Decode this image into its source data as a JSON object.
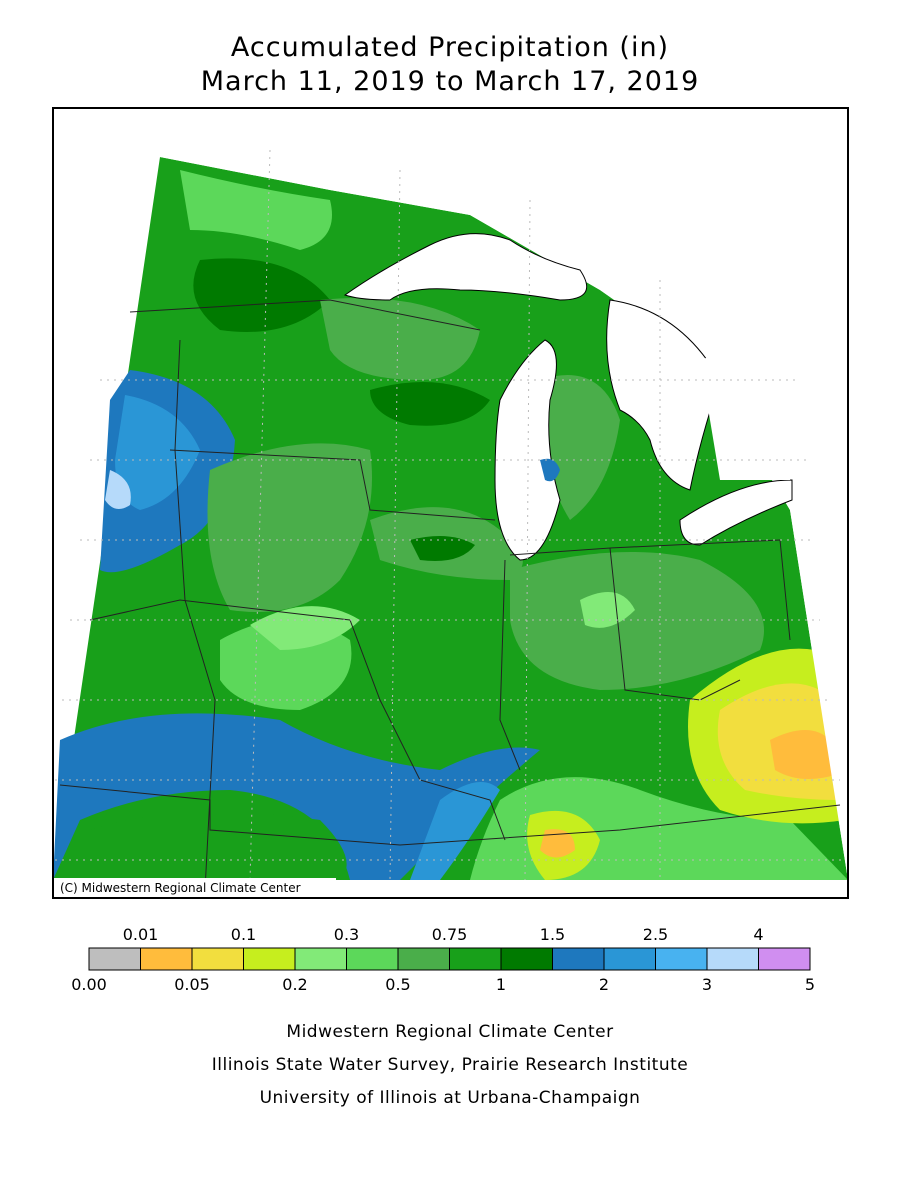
{
  "title": [
    "Accumulated Precipitation (in)",
    "March 11, 2019 to March 17, 2019"
  ],
  "map": {
    "credit": "(C) Midwestern Regional Climate Center"
  },
  "legend": {
    "labels": [
      "0.00",
      "0.01",
      "0.05",
      "0.1",
      "0.2",
      "0.3",
      "0.5",
      "0.75",
      "1",
      "1.5",
      "2",
      "2.5",
      "3",
      "4",
      "5"
    ],
    "colors": [
      "#bebebe",
      "#ffbc3c",
      "#f2de3e",
      "#c6ee1e",
      "#82ea78",
      "#5cd85a",
      "#4aae4a",
      "#18a01a",
      "#007a00",
      "#1e78be",
      "#2a96d6",
      "#48b2f0",
      "#b6dafa",
      "#d08ef0"
    ]
  },
  "footer": [
    "Midwestern Regional Climate Center",
    "Illinois State Water Survey, Prairie Research Institute",
    "University of Illinois at Urbana-Champaign"
  ]
}
